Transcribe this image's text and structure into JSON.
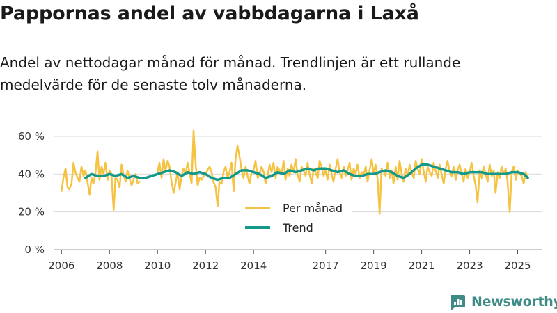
{
  "header": {
    "title": "Pappornas andel av vabbdagarna i Laxå",
    "subtitle": "Andel av nettodagar månad för månad. Trendlinjen är ett rullande medelvärde för de senaste tolv månaderna."
  },
  "brand": {
    "name": "Newsworthy",
    "icon": "newsworthy-logo-icon",
    "color": "#3f8b86"
  },
  "colors": {
    "monthly": "#f6c242",
    "trend": "#12998a",
    "grid": "#d9d9d9"
  },
  "chart_data": {
    "type": "line",
    "title": "Pappornas andel av vabbdagarna i Laxå",
    "xlabel": "",
    "ylabel": "",
    "xlim": [
      2005.7,
      2026.0
    ],
    "ylim": [
      0,
      60
    ],
    "y_ticks": [
      0,
      20,
      40,
      60
    ],
    "y_tick_labels": [
      "0 %",
      "20 %",
      "40 %",
      "60 %"
    ],
    "x_ticks": [
      2006,
      2008,
      2010,
      2012,
      2014,
      2017,
      2019,
      2021,
      2023,
      2025
    ],
    "x_tick_labels": [
      "2006",
      "2008",
      "2010",
      "2012",
      "2014",
      "2017",
      "2019",
      "2021",
      "2023",
      "2025"
    ],
    "legend": {
      "placement": "center",
      "entries": [
        "Per månad",
        "Trend"
      ]
    },
    "series": [
      {
        "name": "Per månad",
        "x": [
          2006.0,
          2006.08,
          2006.17,
          2006.25,
          2006.33,
          2006.42,
          2006.5,
          2006.58,
          2006.67,
          2006.75,
          2006.83,
          2006.92,
          2007.0,
          2007.08,
          2007.17,
          2007.25,
          2007.33,
          2007.42,
          2007.5,
          2007.58,
          2007.67,
          2007.75,
          2007.83,
          2007.92,
          2008.0,
          2008.08,
          2008.17,
          2008.25,
          2008.33,
          2008.42,
          2008.5,
          2008.58,
          2008.67,
          2008.75,
          2008.83,
          2008.92,
          2009.0,
          2009.08,
          2009.17,
          2009.25,
          2009.33,
          2009.42,
          2009.5,
          2010.0,
          2010.08,
          2010.17,
          2010.25,
          2010.33,
          2010.42,
          2010.5,
          2010.58,
          2010.67,
          2010.75,
          2010.83,
          2010.92,
          2011.0,
          2011.08,
          2011.17,
          2011.25,
          2011.33,
          2011.42,
          2011.5,
          2011.58,
          2011.67,
          2011.75,
          2011.83,
          2011.92,
          2012.0,
          2012.08,
          2012.17,
          2012.25,
          2012.33,
          2012.42,
          2012.5,
          2012.58,
          2012.67,
          2012.75,
          2012.83,
          2012.92,
          2013.0,
          2013.08,
          2013.17,
          2013.25,
          2013.33,
          2013.42,
          2013.5,
          2013.58,
          2013.67,
          2013.75,
          2013.83,
          2013.92,
          2014.0,
          2014.08,
          2014.17,
          2014.25,
          2014.33,
          2014.42,
          2014.5,
          2014.58,
          2014.67,
          2014.75,
          2014.83,
          2014.92,
          2015.0,
          2015.08,
          2015.17,
          2015.25,
          2015.33,
          2015.42,
          2015.5,
          2015.58,
          2015.67,
          2015.75,
          2015.83,
          2015.92,
          2016.0,
          2016.08,
          2016.17,
          2016.25,
          2016.33,
          2016.42,
          2016.5,
          2016.58,
          2016.67,
          2016.75,
          2016.83,
          2016.92,
          2017.0,
          2017.08,
          2017.17,
          2017.25,
          2017.33,
          2017.42,
          2017.5,
          2017.58,
          2017.67,
          2017.75,
          2017.83,
          2017.92,
          2018.0,
          2018.08,
          2018.17,
          2018.25,
          2018.33,
          2018.42,
          2018.5,
          2018.58,
          2018.67,
          2018.75,
          2018.83,
          2018.92,
          2019.0,
          2019.08,
          2019.17,
          2019.25,
          2019.33,
          2019.42,
          2019.5,
          2019.58,
          2019.67,
          2019.75,
          2019.83,
          2019.92,
          2020.0,
          2020.08,
          2020.17,
          2020.25,
          2020.33,
          2020.42,
          2020.5,
          2020.58,
          2020.67,
          2020.75,
          2020.83,
          2020.92,
          2021.0,
          2021.08,
          2021.17,
          2021.25,
          2021.33,
          2021.42,
          2021.5,
          2021.58,
          2021.67,
          2021.75,
          2021.83,
          2021.92,
          2022.0,
          2022.08,
          2022.17,
          2022.25,
          2022.33,
          2022.42,
          2022.5,
          2022.58,
          2022.67,
          2022.75,
          2022.83,
          2022.92,
          2023.0,
          2023.08,
          2023.17,
          2023.25,
          2023.33,
          2023.42,
          2023.5,
          2023.58,
          2023.67,
          2023.75,
          2023.83,
          2023.92,
          2024.0,
          2024.08,
          2024.17,
          2024.25,
          2024.33,
          2024.42,
          2024.5,
          2024.58,
          2024.67,
          2024.75,
          2024.83,
          2024.92,
          2025.0,
          2025.08,
          2025.17,
          2025.25,
          2025.33,
          2025.42
        ],
        "values": [
          31,
          38,
          43,
          33,
          32,
          35,
          46,
          41,
          38,
          36,
          44,
          39,
          42,
          36,
          29,
          38,
          35,
          41,
          52,
          37,
          44,
          40,
          46,
          37,
          42,
          40,
          21,
          38,
          37,
          33,
          45,
          40,
          36,
          42,
          38,
          34,
          37,
          40,
          35,
          36,
          null,
          null,
          null,
          41,
          46,
          38,
          48,
          42,
          47,
          44,
          36,
          30,
          35,
          41,
          32,
          39,
          43,
          40,
          46,
          41,
          35,
          63,
          46,
          34,
          38,
          37,
          39,
          40,
          42,
          44,
          41,
          36,
          33,
          23,
          36,
          35,
          41,
          44,
          38,
          41,
          46,
          31,
          48,
          55,
          49,
          42,
          38,
          44,
          39,
          35,
          41,
          42,
          47,
          38,
          40,
          44,
          41,
          35,
          39,
          45,
          41,
          46,
          38,
          44,
          42,
          40,
          47,
          37,
          43,
          39,
          45,
          41,
          48,
          40,
          36,
          44,
          42,
          39,
          46,
          40,
          35,
          43,
          41,
          38,
          47,
          44,
          39,
          42,
          37,
          45,
          40,
          36,
          43,
          48,
          41,
          38,
          44,
          39,
          42,
          46,
          37,
          43,
          40,
          45,
          38,
          41,
          39,
          44,
          36,
          42,
          48,
          40,
          45,
          37,
          19,
          43,
          41,
          39,
          46,
          38,
          42,
          35,
          44,
          37,
          47,
          40,
          36,
          43,
          39,
          45,
          41,
          38,
          47,
          43,
          40,
          48,
          42,
          36,
          44,
          41,
          39,
          46,
          42,
          38,
          45,
          40,
          35,
          43,
          47,
          41,
          39,
          44,
          37,
          42,
          45,
          40,
          36,
          43,
          38,
          41,
          46,
          39,
          34,
          25,
          42,
          38,
          44,
          40,
          36,
          45,
          39,
          42,
          30,
          41,
          38,
          44,
          40,
          43,
          36,
          20,
          41,
          44,
          37,
          42,
          40,
          39,
          35,
          41,
          38
        ],
        "color": "#f6c242"
      },
      {
        "name": "Trend",
        "x": [
          2007.0,
          2007.25,
          2007.5,
          2007.75,
          2008.0,
          2008.25,
          2008.5,
          2008.75,
          2009.0,
          2009.25,
          2009.5,
          2010.5,
          2010.75,
          2011.0,
          2011.25,
          2011.5,
          2011.75,
          2012.0,
          2012.25,
          2012.5,
          2012.75,
          2013.0,
          2013.25,
          2013.5,
          2013.75,
          2014.0,
          2014.25,
          2014.5,
          2014.75,
          2015.0,
          2015.25,
          2015.5,
          2015.75,
          2016.0,
          2016.25,
          2016.5,
          2016.75,
          2017.0,
          2017.25,
          2017.5,
          2017.75,
          2018.0,
          2018.25,
          2018.5,
          2018.75,
          2019.0,
          2019.25,
          2019.5,
          2019.75,
          2020.0,
          2020.25,
          2020.5,
          2020.75,
          2021.0,
          2021.25,
          2021.5,
          2021.75,
          2022.0,
          2022.25,
          2022.5,
          2022.75,
          2023.0,
          2023.25,
          2023.5,
          2023.75,
          2024.0,
          2024.25,
          2024.5,
          2024.75,
          2025.0,
          2025.25,
          2025.42
        ],
        "values": [
          38,
          40,
          39,
          39,
          40,
          39,
          40,
          38,
          39,
          38,
          38,
          42,
          41,
          39,
          41,
          40,
          41,
          40,
          38,
          37,
          38,
          38,
          40,
          42,
          42,
          41,
          40,
          38,
          39,
          41,
          40,
          42,
          41,
          42,
          43,
          42,
          43,
          43,
          42,
          41,
          42,
          40,
          39,
          39,
          40,
          40,
          41,
          42,
          41,
          39,
          38,
          40,
          43,
          45,
          45,
          44,
          43,
          42,
          41,
          41,
          40,
          41,
          41,
          41,
          40,
          40,
          40,
          40,
          41,
          41,
          40,
          38
        ],
        "color": "#12998a"
      }
    ]
  }
}
